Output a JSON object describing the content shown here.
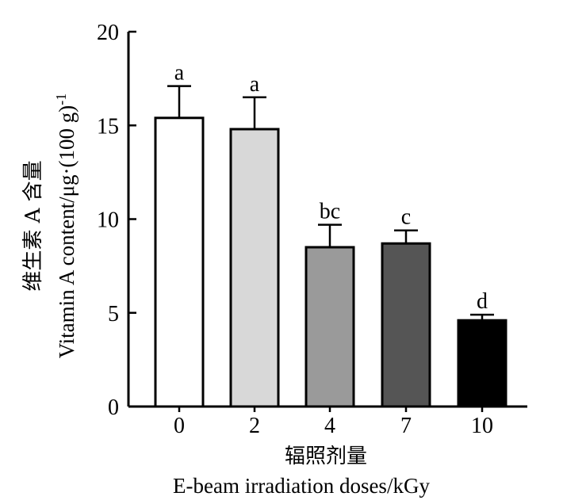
{
  "chart_data": {
    "type": "bar",
    "categories": [
      "0",
      "2",
      "4",
      "7",
      "10"
    ],
    "values": [
      15.4,
      14.8,
      8.5,
      8.7,
      4.6
    ],
    "error_bars": [
      1.7,
      1.7,
      1.2,
      0.7,
      0.3
    ],
    "significance_labels": [
      "a",
      "a",
      "bc",
      "c",
      "d"
    ],
    "bar_colors": [
      "#ffffff",
      "#d8d8d8",
      "#9a9a9a",
      "#555555",
      "#000000"
    ],
    "xlabel_cn": "辐照剂量",
    "xlabel_en": "E-beam irradiation doses/kGy",
    "ylabel_cn": "维生素 A 含量",
    "ylabel_en": "Vitamin  A  content/μg·(100 g)",
    "ylabel_en_sup": "-1",
    "ylim": [
      0,
      20
    ],
    "yticks": [
      "0",
      "5",
      "10",
      "15",
      "20"
    ],
    "grid": false
  }
}
